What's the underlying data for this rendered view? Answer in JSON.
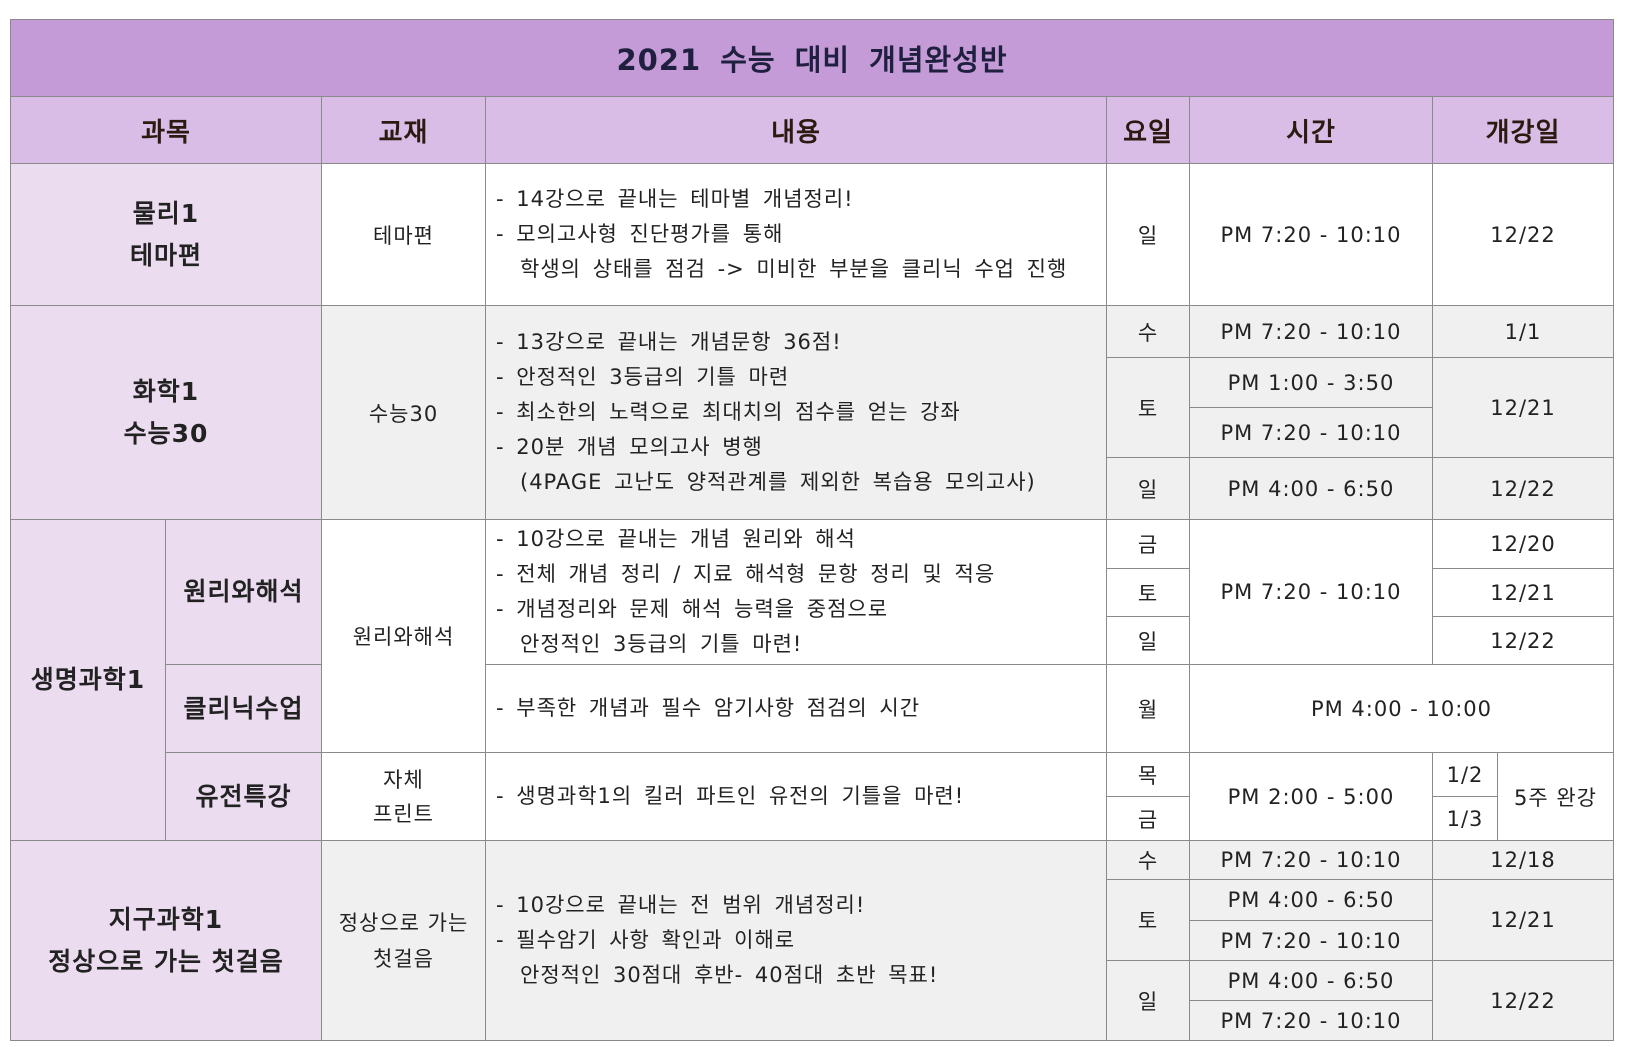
{
  "title": "2021 수능 대비 개념완성반",
  "headers": {
    "subject": "과목",
    "textbook": "교재",
    "content": "내용",
    "day": "요일",
    "time": "시간",
    "start": "개강일"
  },
  "physics": {
    "subject_line1": "물리1",
    "subject_line2": "테마편",
    "textbook": "테마편",
    "content": [
      "- 14강으로 끝내는 테마별 개념정리!",
      "- 모의고사형 진단평가를 통해",
      "학생의 상태를 점검 -> 미비한 부분을 클리닉 수업 진행"
    ],
    "day": "일",
    "time": "PM 7:20 - 10:10",
    "start": "12/22"
  },
  "chemistry": {
    "subject_line1": "화학1",
    "subject_line2": "수능30",
    "textbook": "수능30",
    "content": [
      "- 13강으로 끝내는 개념문항 36점!",
      "- 안정적인 3등급의 기틀 마련",
      "- 최소한의 노력으로 최대치의 점수를 얻는 강좌",
      "- 20분 개념 모의고사 병행",
      "(4PAGE 고난도 양적관계를 제외한 복습용 모의고사)"
    ],
    "schedule": [
      {
        "day": "수",
        "time": "PM 7:20 - 10:10",
        "start": "1/1"
      },
      {
        "day": "토",
        "times": [
          "PM 1:00 - 3:50",
          "PM 7:20 - 10:10"
        ],
        "start": "12/21"
      },
      {
        "day": "일",
        "time": "PM 4:00 - 6:50",
        "start": "12/22"
      }
    ]
  },
  "biology": {
    "subject": "생명과학1",
    "principle": {
      "name": "원리와해석",
      "textbook": "원리와해석",
      "content": [
        "- 10강으로 끝내는 개념 원리와 해석",
        "- 전체 개념 정리 / 지료 해석형 문항 정리 및 적응",
        "- 개념정리와 문제 해석 능력을 중점으로",
        "안정적인 3등급의 기틀 마련!"
      ],
      "time": "PM 7:20 - 10:10",
      "schedule": [
        {
          "day": "금",
          "start": "12/20"
        },
        {
          "day": "토",
          "start": "12/21"
        },
        {
          "day": "일",
          "start": "12/22"
        }
      ]
    },
    "clinic": {
      "name": "클리닉수업",
      "content": "- 부족한 개념과 필수 암기사항 점검의 시간",
      "day": "월",
      "time": "PM 4:00 - 10:00"
    },
    "genetics": {
      "name": "유전특강",
      "textbook_line1": "자체",
      "textbook_line2": "프린트",
      "content": "- 생명과학1의 킬러 파트인 유전의 기틀을 마련!",
      "time": "PM 2:00 - 5:00",
      "duration": "5주 완강",
      "schedule": [
        {
          "day": "목",
          "start": "1/2"
        },
        {
          "day": "금",
          "start": "1/3"
        }
      ]
    }
  },
  "earth": {
    "subject_line1": "지구과학1",
    "subject_line2": "정상으로 가는 첫걸음",
    "textbook_line1": "정상으로 가는",
    "textbook_line2": "첫걸음",
    "content": [
      "- 10강으로 끝내는 전 범위 개념정리!",
      "- 필수암기 사항 확인과 이해로",
      "안정적인 30점대 후반- 40점대 초반 목표!"
    ],
    "schedule": [
      {
        "day": "수",
        "time": "PM 7:20 - 10:10",
        "start": "12/18"
      },
      {
        "day": "토",
        "times": [
          "PM 4:00 - 6:50",
          "PM 7:20 - 10:10"
        ],
        "start": "12/21"
      },
      {
        "day": "일",
        "times": [
          "PM 4:00 - 6:50",
          "PM 7:20 - 10:10"
        ],
        "start": "12/22"
      }
    ]
  },
  "colors": {
    "title_bg": "#c49bd6",
    "header_bg": "#d9bde6",
    "subject_bg": "#ecdcf0",
    "alt_row_bg": "#f0f0f0"
  }
}
